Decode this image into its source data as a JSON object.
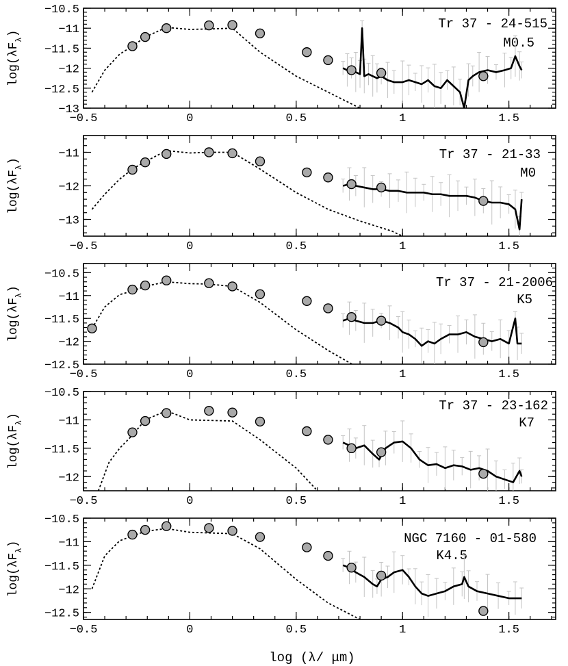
{
  "colors": {
    "point_fill": "#a9a9a9",
    "error_bars": "#c4c4c4",
    "line": "#000000"
  },
  "chart_data": [
    {
      "type": "scatter",
      "object": "Tr 37 - 24-515",
      "spectral_type": "M0.5",
      "ylabel": "log(λF_λ)",
      "xlim": [
        -0.5,
        1.72
      ],
      "ylim": [
        -13,
        -10.5
      ],
      "yticks": [
        -10.5,
        -11,
        -11.5,
        -12,
        -12.5,
        -13
      ],
      "xticks": [
        -0.5,
        0,
        0.5,
        1,
        1.5
      ],
      "photometry": {
        "x": [
          -0.27,
          -0.21,
          -0.11,
          0.09,
          0.2,
          0.33,
          0.55,
          0.65,
          0.76,
          0.9,
          1.38
        ],
        "y": [
          -11.45,
          -11.22,
          -11.0,
          -10.93,
          -10.92,
          -11.13,
          -11.6,
          -11.8,
          -12.05,
          -12.12,
          -12.2
        ]
      },
      "model": {
        "x": [
          -0.46,
          -0.4,
          -0.33,
          -0.27,
          -0.21,
          -0.11,
          0.0,
          0.09,
          0.2,
          0.33,
          0.5,
          0.65,
          0.8
        ],
        "y": [
          -12.6,
          -12.05,
          -11.65,
          -11.45,
          -11.22,
          -10.98,
          -11.03,
          -11.02,
          -11.0,
          -11.6,
          -12.2,
          -12.6,
          -13.0
        ]
      },
      "spectrum": {
        "x": [
          0.72,
          0.74,
          0.76,
          0.78,
          0.8,
          0.81,
          0.82,
          0.84,
          0.86,
          0.88,
          0.9,
          0.93,
          0.96,
          1.0,
          1.03,
          1.06,
          1.09,
          1.12,
          1.15,
          1.18,
          1.21,
          1.24,
          1.27,
          1.29,
          1.31,
          1.33,
          1.36,
          1.4,
          1.44,
          1.48,
          1.51,
          1.53,
          1.55,
          1.56
        ],
        "y": [
          -12.0,
          -12.05,
          -12.0,
          -12.1,
          -12.15,
          -11.0,
          -12.2,
          -12.15,
          -12.2,
          -12.25,
          -12.2,
          -12.3,
          -12.35,
          -12.35,
          -12.3,
          -12.35,
          -12.4,
          -12.3,
          -12.45,
          -12.5,
          -12.3,
          -12.45,
          -12.6,
          -13.0,
          -12.3,
          -12.2,
          -12.1,
          -12.05,
          -12.1,
          -12.05,
          -12.0,
          -11.7,
          -11.95,
          -12.05
        ]
      }
    },
    {
      "type": "scatter",
      "object": "Tr 37 - 21-33",
      "spectral_type": "M0",
      "ylabel": "log(λF_λ)",
      "xlim": [
        -0.5,
        1.72
      ],
      "ylim": [
        -13.5,
        -10.5
      ],
      "yticks": [
        -11,
        -12,
        -13
      ],
      "xticks": [
        -0.5,
        0,
        0.5,
        1,
        1.5
      ],
      "photometry": {
        "x": [
          -0.27,
          -0.21,
          -0.11,
          0.09,
          0.2,
          0.33,
          0.55,
          0.65,
          0.76,
          0.9,
          1.38
        ],
        "y": [
          -11.52,
          -11.3,
          -11.05,
          -11.0,
          -11.03,
          -11.27,
          -11.6,
          -11.75,
          -11.95,
          -12.05,
          -12.45
        ]
      },
      "model": {
        "x": [
          -0.46,
          -0.4,
          -0.33,
          -0.27,
          -0.21,
          -0.11,
          0.0,
          0.09,
          0.2,
          0.33,
          0.5,
          0.65,
          0.8,
          0.95,
          1.0
        ],
        "y": [
          -12.7,
          -12.25,
          -11.8,
          -11.5,
          -11.28,
          -10.95,
          -11.02,
          -11.0,
          -11.0,
          -11.5,
          -12.2,
          -12.7,
          -13.05,
          -13.35,
          -13.5
        ]
      },
      "spectrum": {
        "x": [
          0.72,
          0.75,
          0.78,
          0.82,
          0.86,
          0.9,
          0.94,
          0.98,
          1.02,
          1.06,
          1.1,
          1.14,
          1.18,
          1.22,
          1.26,
          1.3,
          1.34,
          1.38,
          1.42,
          1.46,
          1.5,
          1.53,
          1.55,
          1.56
        ],
        "y": [
          -12.0,
          -11.95,
          -12.0,
          -12.05,
          -12.1,
          -12.1,
          -12.15,
          -12.15,
          -12.2,
          -12.2,
          -12.2,
          -12.25,
          -12.25,
          -12.3,
          -12.3,
          -12.3,
          -12.35,
          -12.45,
          -12.5,
          -12.5,
          -12.55,
          -12.7,
          -13.3,
          -12.4
        ]
      }
    },
    {
      "type": "scatter",
      "object": "Tr 37 - 21-2006",
      "spectral_type": "K5",
      "ylabel": "log(λF_λ)",
      "xlim": [
        -0.5,
        1.72
      ],
      "ylim": [
        -12.5,
        -10.3
      ],
      "yticks": [
        -10.5,
        -11,
        -11.5,
        -12,
        -12.5
      ],
      "xticks": [
        -0.5,
        0,
        0.5,
        1,
        1.5
      ],
      "photometry": {
        "x": [
          -0.46,
          -0.27,
          -0.21,
          -0.11,
          0.09,
          0.2,
          0.33,
          0.55,
          0.65,
          0.76,
          0.9,
          1.38
        ],
        "y": [
          -11.72,
          -10.87,
          -10.78,
          -10.67,
          -10.73,
          -10.8,
          -10.97,
          -11.12,
          -11.28,
          -11.47,
          -11.55,
          -12.02
        ]
      },
      "model": {
        "x": [
          -0.46,
          -0.4,
          -0.33,
          -0.27,
          -0.21,
          -0.11,
          0.0,
          0.09,
          0.2,
          0.33,
          0.5,
          0.65,
          0.8
        ],
        "y": [
          -11.72,
          -11.25,
          -10.98,
          -10.9,
          -10.8,
          -10.7,
          -10.74,
          -10.75,
          -10.8,
          -11.15,
          -11.75,
          -12.2,
          -12.6
        ]
      },
      "spectrum": {
        "x": [
          0.72,
          0.75,
          0.78,
          0.82,
          0.86,
          0.9,
          0.94,
          0.98,
          1.0,
          1.03,
          1.06,
          1.09,
          1.12,
          1.15,
          1.18,
          1.22,
          1.26,
          1.3,
          1.34,
          1.38,
          1.42,
          1.46,
          1.5,
          1.53,
          1.54,
          1.56
        ],
        "y": [
          -11.55,
          -11.5,
          -11.55,
          -11.6,
          -11.6,
          -11.55,
          -11.6,
          -11.7,
          -11.8,
          -11.85,
          -11.95,
          -12.1,
          -12.0,
          -12.05,
          -11.95,
          -11.85,
          -11.85,
          -11.8,
          -11.9,
          -11.95,
          -12.0,
          -11.95,
          -12.05,
          -11.5,
          -12.05,
          -12.05
        ]
      }
    },
    {
      "type": "scatter",
      "object": "Tr 37 - 23-162",
      "spectral_type": "K7",
      "ylabel": "log(λF_λ)",
      "xlim": [
        -0.5,
        1.72
      ],
      "ylim": [
        -12.25,
        -10.5
      ],
      "yticks": [
        -10.5,
        -11,
        -11.5,
        -12
      ],
      "xticks": [
        -0.5,
        0,
        0.5,
        1,
        1.5
      ],
      "photometry": {
        "x": [
          -0.27,
          -0.21,
          -0.11,
          0.09,
          0.2,
          0.33,
          0.55,
          0.65,
          0.76,
          0.9,
          1.38
        ],
        "y": [
          -11.22,
          -11.02,
          -10.88,
          -10.84,
          -10.87,
          -11.03,
          -11.2,
          -11.35,
          -11.5,
          -11.57,
          -11.95
        ]
      },
      "model": {
        "x": [
          -0.43,
          -0.38,
          -0.33,
          -0.27,
          -0.21,
          -0.11,
          0.0,
          0.2,
          0.33,
          0.5,
          0.6
        ],
        "y": [
          -12.25,
          -11.75,
          -11.5,
          -11.27,
          -11.0,
          -10.84,
          -11.0,
          -11.02,
          -11.35,
          -11.85,
          -12.25
        ]
      },
      "spectrum": {
        "x": [
          0.72,
          0.75,
          0.78,
          0.82,
          0.86,
          0.89,
          0.92,
          0.96,
          1.0,
          1.04,
          1.08,
          1.12,
          1.16,
          1.2,
          1.24,
          1.28,
          1.32,
          1.36,
          1.4,
          1.44,
          1.48,
          1.52,
          1.55,
          1.56
        ],
        "y": [
          -11.4,
          -11.45,
          -11.5,
          -11.45,
          -11.6,
          -11.7,
          -11.5,
          -11.4,
          -11.38,
          -11.5,
          -11.7,
          -11.8,
          -11.78,
          -11.85,
          -11.8,
          -11.82,
          -11.88,
          -11.85,
          -11.9,
          -12.0,
          -12.05,
          -12.1,
          -11.9,
          -12.0
        ]
      }
    },
    {
      "type": "scatter",
      "object": "NGC 7160 - 01-580",
      "spectral_type": "K4.5",
      "ylabel": "log(λF_λ)",
      "xlabel": "log (λ/ μm)",
      "xlim": [
        -0.5,
        1.72
      ],
      "ylim": [
        -12.65,
        -10.5
      ],
      "yticks": [
        -10.5,
        -11,
        -11.5,
        -12,
        -12.5
      ],
      "xticks": [
        -0.5,
        0,
        0.5,
        1,
        1.5
      ],
      "photometry": {
        "x": [
          -0.27,
          -0.21,
          -0.11,
          0.09,
          0.2,
          0.33,
          0.55,
          0.65,
          0.76,
          0.9,
          1.38
        ],
        "y": [
          -10.85,
          -10.75,
          -10.67,
          -10.71,
          -10.77,
          -10.9,
          -11.12,
          -11.3,
          -11.55,
          -11.72,
          -12.47
        ]
      },
      "model": {
        "x": [
          -0.46,
          -0.4,
          -0.33,
          -0.27,
          -0.21,
          -0.11,
          0.0,
          0.2,
          0.33,
          0.5,
          0.65,
          0.8
        ],
        "y": [
          -12.0,
          -11.3,
          -10.98,
          -10.88,
          -10.78,
          -10.72,
          -10.8,
          -10.83,
          -11.15,
          -11.8,
          -12.3,
          -12.65
        ]
      },
      "spectrum": {
        "x": [
          0.72,
          0.75,
          0.78,
          0.82,
          0.86,
          0.88,
          0.9,
          0.93,
          0.96,
          1.0,
          1.03,
          1.06,
          1.09,
          1.12,
          1.16,
          1.2,
          1.24,
          1.28,
          1.29,
          1.31,
          1.35,
          1.4,
          1.45,
          1.5,
          1.53,
          1.56
        ],
        "y": [
          -11.5,
          -11.55,
          -11.65,
          -11.75,
          -11.9,
          -11.95,
          -11.8,
          -11.75,
          -11.65,
          -11.6,
          -11.75,
          -11.95,
          -12.1,
          -12.15,
          -12.1,
          -12.05,
          -11.95,
          -11.9,
          -11.75,
          -11.95,
          -12.05,
          -12.1,
          -12.15,
          -12.2,
          -12.2,
          -12.2
        ]
      }
    }
  ]
}
